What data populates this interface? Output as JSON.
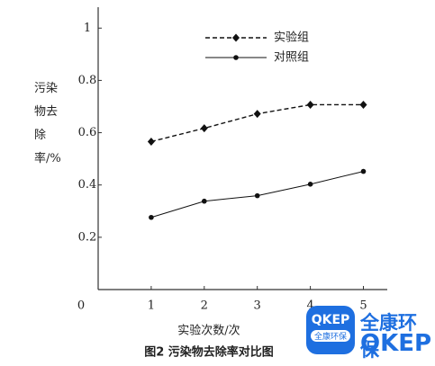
{
  "chart_data": {
    "type": "line",
    "caption": "图2 污染物去除率对比图",
    "xlabel": "实验次数/次",
    "ylabel": "污染物去除率/%",
    "x": [
      1,
      2,
      3,
      4,
      5
    ],
    "series": [
      {
        "name": "实验组",
        "color": "#111",
        "dash": true,
        "marker": "diamond",
        "values": [
          0.566,
          0.617,
          0.672,
          0.707,
          0.707
        ]
      },
      {
        "name": "对照组",
        "color": "#111",
        "dash": false,
        "marker": "circle",
        "values": [
          0.276,
          0.338,
          0.359,
          0.403,
          0.452
        ]
      }
    ],
    "xlim": [
      0,
      5.45
    ],
    "ylim": [
      0,
      1.08
    ],
    "xticks": [
      1,
      2,
      3,
      4,
      5
    ],
    "yticks": [
      0,
      0.2,
      0.4,
      0.6,
      0.8,
      1
    ],
    "grid": false
  },
  "watermark": {
    "logo_top": "QKEP",
    "logo_bottom": "全康环保",
    "name": "全康环保",
    "brand": "QKEP"
  }
}
